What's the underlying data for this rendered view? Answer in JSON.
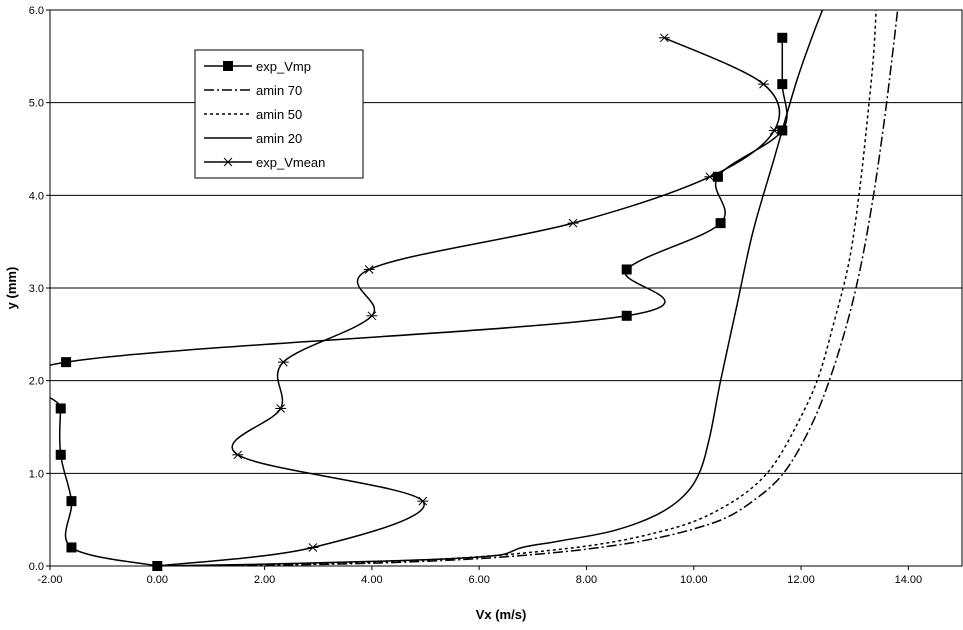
{
  "chart_data": {
    "type": "line",
    "title": "",
    "xlabel": "Vx (m/s)",
    "ylabel": "y (mm)",
    "xlim": [
      -2.0,
      15.0
    ],
    "ylim": [
      0.0,
      6.0
    ],
    "xticks": [
      "-2.00",
      "0.00",
      "2.00",
      "4.00",
      "6.00",
      "8.00",
      "10.00",
      "12.00",
      "14.00"
    ],
    "yticks": [
      "0.0",
      "1.0",
      "2.0",
      "3.0",
      "4.0",
      "5.0",
      "6.0"
    ],
    "grid": "horizontal",
    "legend_position": "top-left",
    "series": [
      {
        "name": "exp_Vmp",
        "marker": "square",
        "line": "solid",
        "x": [
          0.0,
          -1.6,
          -1.6,
          -1.8,
          -1.8,
          -1.7,
          8.75,
          8.75,
          10.5,
          10.45,
          11.65,
          11.65,
          11.65
        ],
        "y": [
          0.0,
          0.2,
          0.7,
          1.2,
          1.7,
          2.2,
          2.7,
          3.2,
          3.7,
          4.2,
          4.7,
          5.2,
          5.7
        ]
      },
      {
        "name": "amin 70",
        "marker": "none",
        "line": "dashdot",
        "x": [
          0.0,
          2.0,
          4.0,
          6.0,
          7.5,
          8.5,
          9.3,
          10.0,
          10.6,
          11.1,
          11.6,
          12.0,
          12.4,
          12.8,
          13.1,
          13.35,
          13.55,
          13.7,
          13.8
        ],
        "y": [
          0.0,
          0.01,
          0.03,
          0.08,
          0.15,
          0.22,
          0.3,
          0.4,
          0.52,
          0.7,
          0.95,
          1.3,
          1.8,
          2.5,
          3.2,
          4.0,
          4.8,
          5.5,
          6.0
        ]
      },
      {
        "name": "amin 50",
        "marker": "none",
        "line": "dotted",
        "x": [
          0.0,
          2.0,
          4.0,
          6.0,
          7.5,
          8.5,
          9.3,
          10.0,
          10.6,
          11.1,
          11.5,
          11.9,
          12.3,
          12.6,
          12.9,
          13.1,
          13.25,
          13.35,
          13.4
        ],
        "y": [
          0.0,
          0.01,
          0.04,
          0.1,
          0.18,
          0.26,
          0.36,
          0.48,
          0.65,
          0.85,
          1.1,
          1.5,
          2.0,
          2.6,
          3.3,
          4.1,
          4.9,
          5.5,
          6.0
        ]
      },
      {
        "name": "amin 20",
        "marker": "none",
        "line": "solid",
        "x": [
          0.0,
          2.0,
          4.0,
          5.5,
          6.4,
          6.8,
          7.5,
          8.5,
          9.3,
          9.8,
          10.1,
          10.3,
          10.5,
          10.8,
          11.1,
          11.5,
          11.9,
          12.2,
          12.4
        ],
        "y": [
          0.0,
          0.02,
          0.05,
          0.08,
          0.12,
          0.2,
          0.27,
          0.38,
          0.55,
          0.75,
          1.0,
          1.4,
          2.0,
          2.8,
          3.6,
          4.4,
          5.2,
          5.7,
          6.0
        ]
      },
      {
        "name": "exp_Vmean",
        "marker": "asterisk",
        "line": "solid",
        "x": [
          0.0,
          2.9,
          4.95,
          1.5,
          2.3,
          2.35,
          4.0,
          3.95,
          7.75,
          10.3,
          11.5,
          11.3,
          9.45
        ],
        "y": [
          0.0,
          0.2,
          0.7,
          1.2,
          1.7,
          2.2,
          2.7,
          3.2,
          3.7,
          4.2,
          4.7,
          5.2,
          5.7
        ]
      }
    ]
  }
}
